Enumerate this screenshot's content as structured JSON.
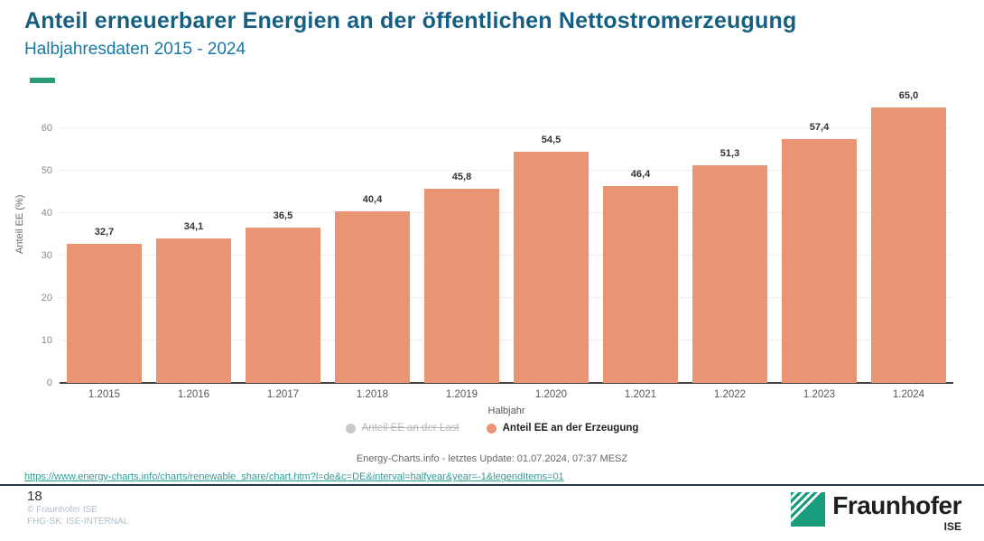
{
  "header": {
    "title": "Anteil erneuerbarer Energien an der öffentlichen Nettostromerzeugung",
    "subtitle": "Halbjahresdaten 2015 - 2024"
  },
  "chart_data": {
    "type": "bar",
    "categories": [
      "1.2015",
      "1.2016",
      "1.2017",
      "1.2018",
      "1.2019",
      "1.2020",
      "1.2021",
      "1.2022",
      "1.2023",
      "1.2024"
    ],
    "values": [
      32.7,
      34.1,
      36.5,
      40.4,
      45.8,
      54.5,
      46.4,
      51.3,
      57.4,
      65.0
    ],
    "value_labels": [
      "32,7",
      "34,1",
      "36,5",
      "40,4",
      "45,8",
      "54,5",
      "46,4",
      "51,3",
      "57,4",
      "65,0"
    ],
    "title": "",
    "xlabel": "Halbjahr",
    "ylabel": "Anteil EE (%)",
    "ylim": [
      0,
      66
    ],
    "yticks": [
      0,
      10,
      20,
      30,
      40,
      50,
      60
    ],
    "grid": true,
    "bar_color": "#E99474",
    "legend_position": "bottom",
    "legend": [
      {
        "label": "Anteil EE an der Last",
        "color": "#c9c9c9",
        "enabled": false
      },
      {
        "label": "Anteil EE an der Erzeugung",
        "color": "#E99474",
        "enabled": true
      }
    ]
  },
  "source_note": "Energy-Charts.info - letztes Update: 01.07.2024, 07:37 MESZ",
  "link": {
    "text": "https://www.energy-charts.info/charts/renewable_share/chart.htm?l=de&c=DE&interval=halfyear&year=-1&legendItems=01"
  },
  "footer": {
    "page_number": "18",
    "copyright": "© Fraunhofer ISE",
    "classification": "FHG-SK: ISE-INTERNAL",
    "logo_name": "Fraunhofer",
    "logo_sub": "ISE"
  },
  "colors": {
    "title": "#156082",
    "subtitle": "#1878A5",
    "accent_dash": "#2E9B77",
    "bar": "#E99474",
    "link": "#2E9D93",
    "divider": "#24384A",
    "fraunhofer_green": "#179C7D"
  }
}
